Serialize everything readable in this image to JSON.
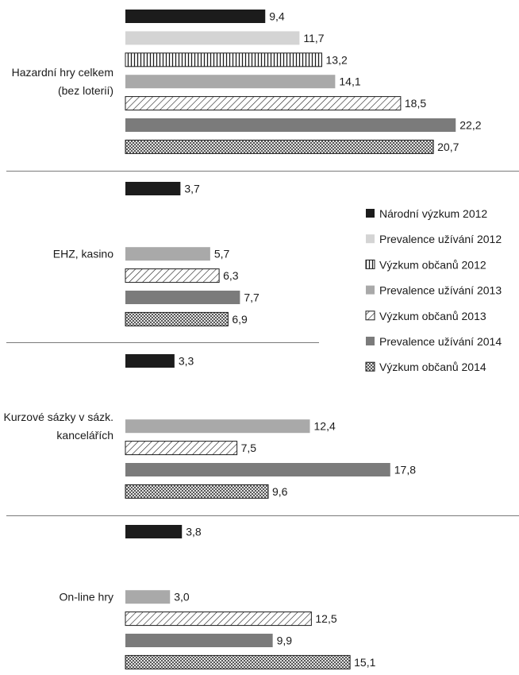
{
  "chart_data": {
    "type": "bar",
    "orientation": "horizontal",
    "title": "",
    "xlabel": "",
    "ylabel": "",
    "xlim": [
      0,
      25
    ],
    "grid": false,
    "legend_position": "right",
    "number_format": "decimal comma",
    "series": [
      {
        "name": "Národní výzkum 2012",
        "fill": "solid",
        "color": "#1c1c1c"
      },
      {
        "name": "Prevalence užívání 2012",
        "fill": "solid",
        "color": "#d4d4d4"
      },
      {
        "name": "Výzkum občanů 2012",
        "fill": "vertical-lines",
        "color": "#1c1c1c"
      },
      {
        "name": "Prevalence užívání 2013",
        "fill": "solid",
        "color": "#a9a9a9"
      },
      {
        "name": "Výzkum občanů 2013",
        "fill": "diagonal-lines",
        "color": "#1c1c1c"
      },
      {
        "name": "Prevalence užívání 2014",
        "fill": "solid",
        "color": "#7b7b7b"
      },
      {
        "name": "Výzkum občanů 2014",
        "fill": "crosshatch",
        "color": "#1c1c1c"
      }
    ],
    "categories": [
      {
        "label_lines": [
          "Hazardní hry celkem",
          "(bez loterií)"
        ],
        "values": [
          9.4,
          11.7,
          13.2,
          14.1,
          18.5,
          22.2,
          20.7
        ]
      },
      {
        "label_lines": [
          "EHZ, kasino"
        ],
        "values": [
          3.7,
          null,
          null,
          5.7,
          6.3,
          7.7,
          6.9
        ]
      },
      {
        "label_lines": [
          "Kurzové sázky v sázk.",
          "kancelářích"
        ],
        "values": [
          3.3,
          null,
          null,
          12.4,
          7.5,
          17.8,
          9.6
        ]
      },
      {
        "label_lines": [
          "On-line hry"
        ],
        "values": [
          3.8,
          null,
          null,
          3.0,
          12.5,
          9.9,
          15.1
        ]
      }
    ]
  }
}
